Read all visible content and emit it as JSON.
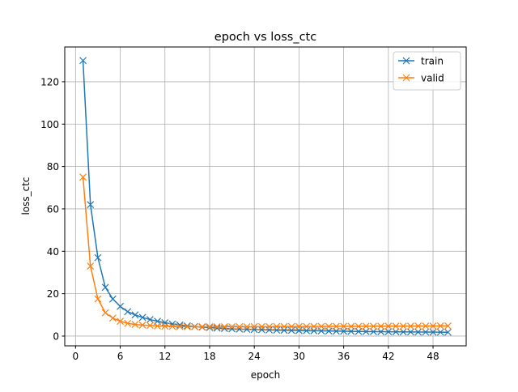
{
  "chart_data": {
    "type": "line",
    "title": "epoch vs loss_ctc",
    "xlabel": "epoch",
    "ylabel": "loss_ctc",
    "xlim": [
      -1.45,
      52.45
    ],
    "ylim": [
      -4.6,
      136.4
    ],
    "xticks": [
      0,
      6,
      12,
      18,
      24,
      30,
      36,
      42,
      48
    ],
    "yticks": [
      0,
      20,
      40,
      60,
      80,
      100,
      120
    ],
    "grid": true,
    "legend_position": "top-right",
    "marker": "x",
    "x": [
      1,
      2,
      3,
      4,
      5,
      6,
      7,
      8,
      9,
      10,
      11,
      12,
      13,
      14,
      15,
      16,
      17,
      18,
      19,
      20,
      21,
      22,
      23,
      24,
      25,
      26,
      27,
      28,
      29,
      30,
      31,
      32,
      33,
      34,
      35,
      36,
      37,
      38,
      39,
      40,
      41,
      42,
      43,
      44,
      45,
      46,
      47,
      48,
      49,
      50
    ],
    "series": [
      {
        "name": "train",
        "color": "#1f77b4",
        "values": [
          130,
          62,
          37,
          23,
          17.5,
          14,
          11.5,
          10,
          8.8,
          7.8,
          7,
          6.3,
          5.7,
          5.2,
          4.8,
          4.5,
          4.2,
          4.0,
          3.8,
          3.6,
          3.4,
          3.3,
          3.2,
          3.1,
          3.0,
          2.9,
          2.8,
          2.75,
          2.7,
          2.6,
          2.55,
          2.5,
          2.45,
          2.4,
          2.35,
          2.3,
          2.25,
          2.2,
          2.15,
          2.1,
          2.08,
          2.05,
          2.0,
          1.98,
          1.95,
          1.92,
          1.9,
          1.88,
          1.85,
          1.8
        ]
      },
      {
        "name": "valid",
        "color": "#ff7f0e",
        "values": [
          75,
          33,
          17.5,
          11,
          8.5,
          7,
          6,
          5.5,
          5.2,
          5.0,
          4.8,
          4.7,
          4.6,
          4.5,
          4.45,
          4.4,
          4.4,
          4.4,
          4.4,
          4.4,
          4.4,
          4.4,
          4.4,
          4.45,
          4.45,
          4.45,
          4.5,
          4.5,
          4.5,
          4.5,
          4.5,
          4.55,
          4.55,
          4.55,
          4.6,
          4.6,
          4.6,
          4.6,
          4.65,
          4.65,
          4.65,
          4.7,
          4.7,
          4.7,
          4.7,
          4.75,
          4.75,
          4.75,
          4.8,
          4.8
        ]
      }
    ]
  }
}
